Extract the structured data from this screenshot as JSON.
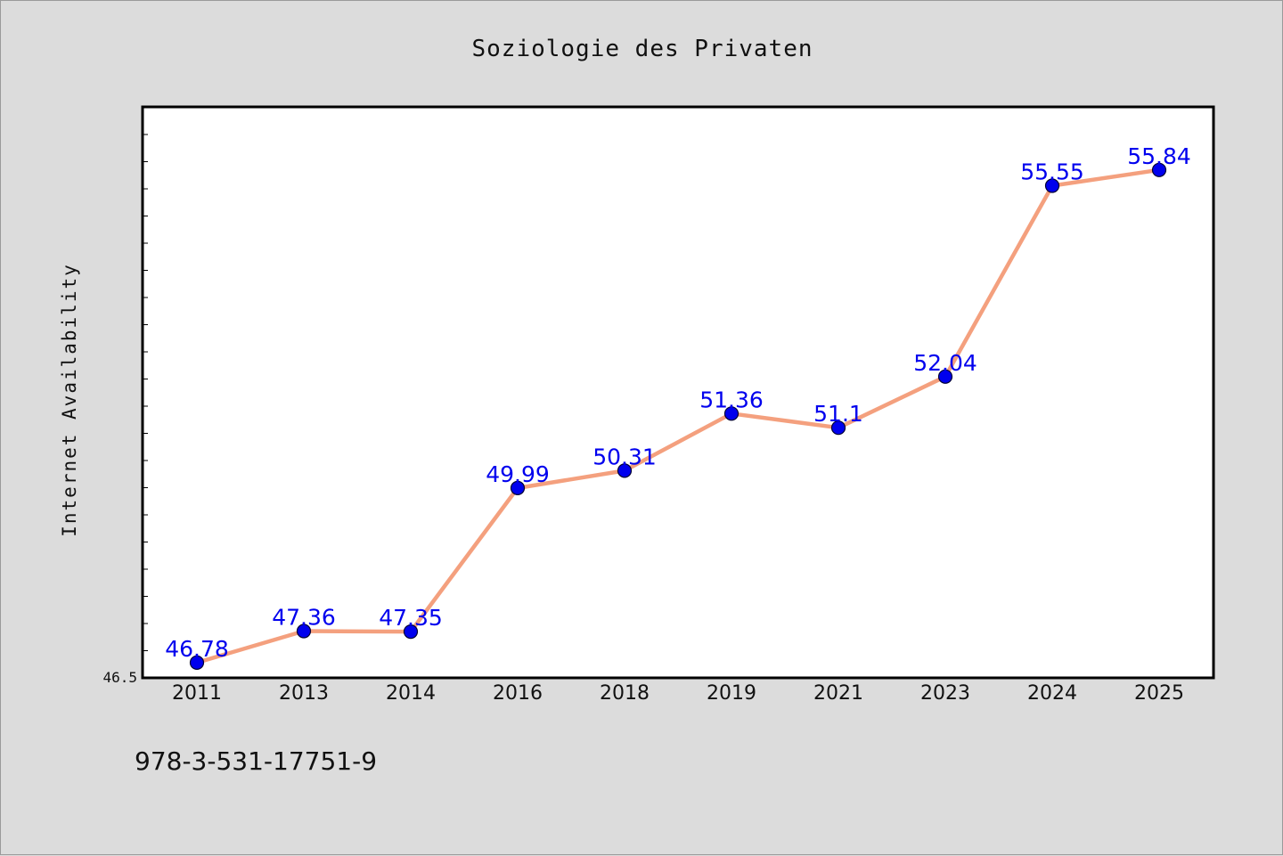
{
  "chart_data": {
    "type": "line",
    "title": "Soziologie des Privaten",
    "xlabel": "",
    "ylabel": "Internet Availability",
    "categories": [
      "2011",
      "2013",
      "2014",
      "2016",
      "2018",
      "2019",
      "2021",
      "2023",
      "2024",
      "2025"
    ],
    "series": [
      {
        "values": [
          46.78,
          47.36,
          47.35,
          49.99,
          50.31,
          51.36,
          51.1,
          52.04,
          55.55,
          55.84
        ],
        "data_labels": [
          "46.78",
          "47.36",
          "47.35",
          "49.99",
          "50.31",
          "51.36",
          "51.1",
          "52.04",
          "55.55",
          "55.84"
        ],
        "line_color": "#f4a07e",
        "marker_color": "#0000ee"
      }
    ],
    "ylim": [
      46.5,
      57.0
    ],
    "y_tick_labels": [
      "46.5"
    ],
    "grid": false,
    "legend": "none",
    "background": "#dcdcdc",
    "plot_background": "#ffffff"
  },
  "footer": {
    "isbn": "978-3-531-17751-9"
  }
}
